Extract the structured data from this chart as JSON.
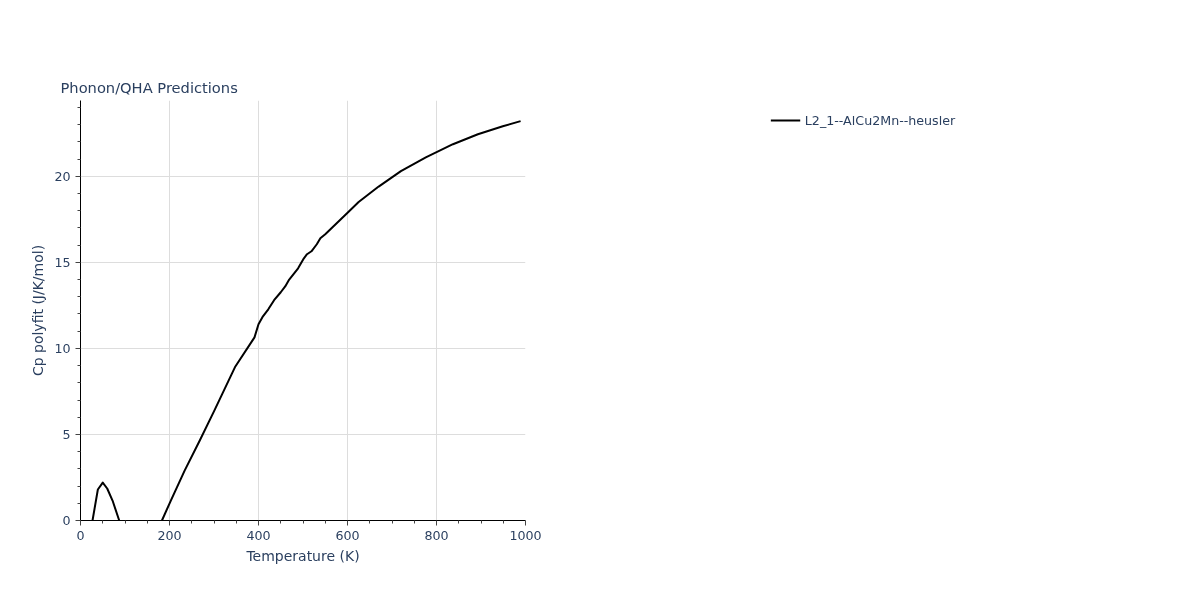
{
  "chart_data": {
    "type": "line",
    "title": "Phonon/QHA Predictions",
    "xlabel": "Temperature (K)",
    "ylabel": "Cp polyfit (J/K/mol)",
    "series": [
      {
        "name": "L2_1--AlCu2Mn--heusler",
        "color": "#000000",
        "x": [
          27,
          39,
          50,
          60,
          72,
          87,
          130,
          183,
          203,
          234,
          268,
          301,
          348,
          391,
          400,
          410,
          422,
          435,
          450,
          460,
          469,
          489,
          502,
          509,
          519,
          531,
          539,
          550,
          564,
          599,
          625,
          670,
          720,
          776,
          837,
          893,
          949,
          989
        ],
        "values": [
          0,
          1.8,
          2.2,
          1.86,
          1.16,
          0,
          null,
          0,
          1.16,
          2.9,
          4.65,
          6.4,
          8.95,
          10.64,
          11.4,
          11.86,
          12.27,
          12.8,
          13.26,
          13.6,
          14.0,
          14.65,
          15.23,
          15.47,
          15.64,
          16.05,
          16.4,
          16.63,
          16.98,
          17.85,
          18.5,
          19.4,
          20.3,
          21.1,
          21.86,
          22.44,
          22.9,
          23.2
        ]
      }
    ],
    "xlim": [
      0,
      1000
    ],
    "ylim": [
      0,
      24.4
    ],
    "xticks": [
      0,
      {
        "value": 50,
        "label": null
      },
      {
        "value": 100,
        "label": null
      },
      {
        "value": 150,
        "label": null
      },
      200,
      {
        "value": 250,
        "label": null
      },
      {
        "value": 300,
        "label": null
      },
      {
        "value": 350,
        "label": null
      },
      400,
      {
        "value": 450,
        "label": null
      },
      {
        "value": 500,
        "label": null
      },
      {
        "value": 550,
        "label": null
      },
      600,
      {
        "value": 650,
        "label": null
      },
      {
        "value": 700,
        "label": null
      },
      {
        "value": 750,
        "label": null
      },
      800,
      {
        "value": 850,
        "label": null
      },
      {
        "value": 900,
        "label": null
      },
      {
        "value": 950,
        "label": null
      },
      1000
    ],
    "yticks": [
      0,
      {
        "value": 1,
        "label": null
      },
      {
        "value": 2,
        "label": null
      },
      {
        "value": 3,
        "label": null
      },
      {
        "value": 4,
        "label": null
      },
      5,
      {
        "value": 6,
        "label": null
      },
      {
        "value": 7,
        "label": null
      },
      {
        "value": 8,
        "label": null
      },
      {
        "value": 9,
        "label": null
      },
      10,
      {
        "value": 11,
        "label": null
      },
      {
        "value": 12,
        "label": null
      },
      {
        "value": 13,
        "label": null
      },
      {
        "value": 14,
        "label": null
      },
      15,
      {
        "value": 16,
        "label": null
      },
      {
        "value": 17,
        "label": null
      },
      {
        "value": 18,
        "label": null
      },
      {
        "value": 19,
        "label": null
      },
      20,
      {
        "value": 21,
        "label": null
      },
      {
        "value": 22,
        "label": null
      },
      {
        "value": 23,
        "label": null
      },
      {
        "value": 24,
        "label": null
      }
    ],
    "grid": true,
    "legend": "top right"
  }
}
